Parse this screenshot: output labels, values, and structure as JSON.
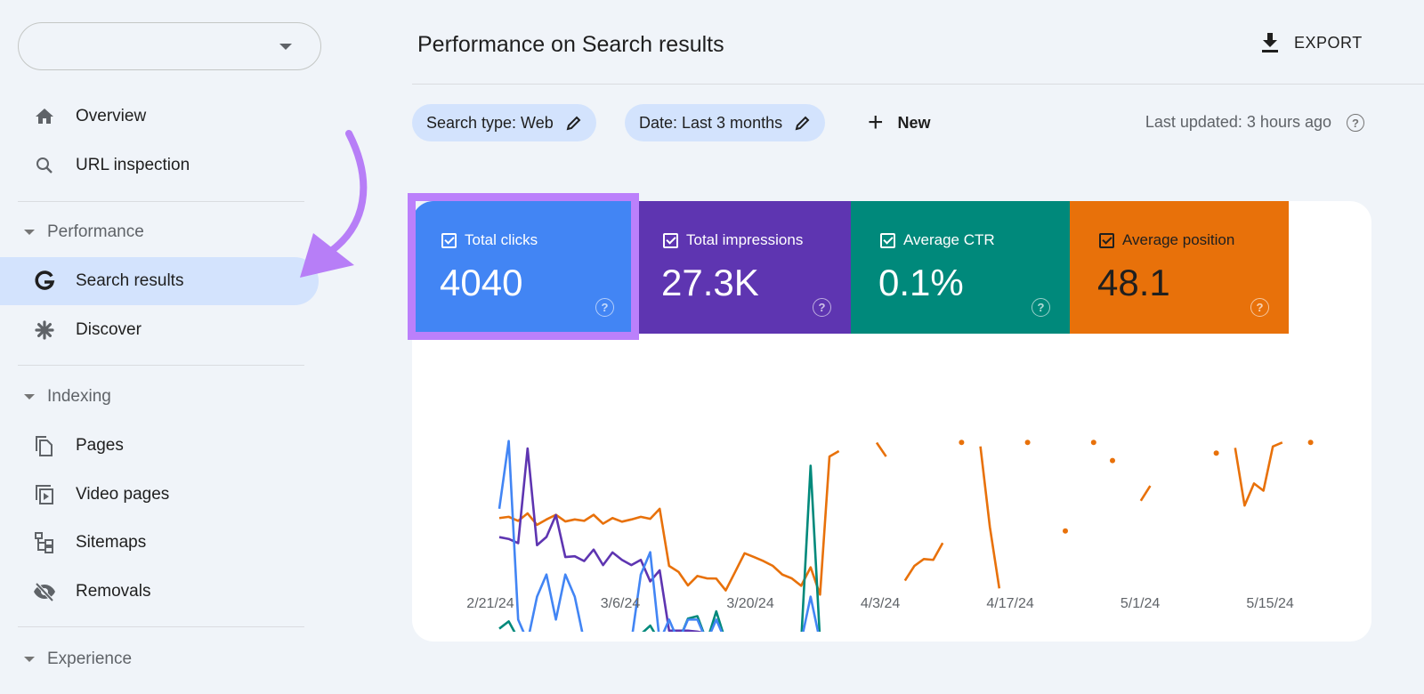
{
  "sidebar": {
    "property_selector": {
      "value": ""
    },
    "items": [
      {
        "label": "Overview",
        "icon": "home-icon"
      },
      {
        "label": "URL inspection",
        "icon": "search-icon"
      }
    ],
    "sections": [
      {
        "label": "Performance",
        "items": [
          {
            "label": "Search results",
            "icon": "google-g-icon",
            "active": true
          },
          {
            "label": "Discover",
            "icon": "asterisk-icon"
          }
        ]
      },
      {
        "label": "Indexing",
        "items": [
          {
            "label": "Pages",
            "icon": "pages-icon"
          },
          {
            "label": "Video pages",
            "icon": "video-pages-icon"
          },
          {
            "label": "Sitemaps",
            "icon": "sitemap-icon"
          },
          {
            "label": "Removals",
            "icon": "eye-off-icon"
          }
        ]
      },
      {
        "label": "Experience",
        "items": []
      }
    ]
  },
  "header": {
    "title": "Performance on Search results",
    "export_label": "EXPORT"
  },
  "filters": {
    "chips": [
      {
        "label": "Search type: Web"
      },
      {
        "label": "Date: Last 3 months"
      }
    ],
    "new_label": "New",
    "last_updated": "Last updated: 3 hours ago"
  },
  "metrics": [
    {
      "label": "Total clicks",
      "value": "4040",
      "checked": true,
      "color": "#4285f4",
      "selected": true
    },
    {
      "label": "Total impressions",
      "value": "27.3K",
      "checked": true,
      "color": "#5e35b1"
    },
    {
      "label": "Average CTR",
      "value": "0.1%",
      "checked": true,
      "color": "#00897b"
    },
    {
      "label": "Average position",
      "value": "48.1",
      "checked": true,
      "color": "#e8710a"
    }
  ],
  "annotation": {
    "arrow_color": "#b77ef7",
    "highlight_color": "#bb80fb"
  },
  "chart_data": {
    "type": "line",
    "x_start": "2/21/24",
    "x_tick_labels": [
      "2/21/24",
      "3/6/24",
      "3/20/24",
      "4/3/24",
      "4/17/24",
      "5/1/24",
      "5/15/24"
    ],
    "x_tick_day_offsets": [
      0,
      14,
      28,
      42,
      56,
      70,
      84
    ],
    "y_axis_labels_shown": false,
    "value_scale": "relative 0-100 per metric (no y-axis printed)",
    "grid": false,
    "series": [
      {
        "metric": "Average position",
        "color": "#e8710a",
        "values": [
          61.4,
          62,
          60,
          63.7,
          58,
          60.7,
          63,
          59.7,
          60.7,
          60,
          63,
          58.6,
          61.4,
          59.6,
          60.7,
          62,
          61,
          66,
          37.6,
          34.6,
          27.9,
          32.6,
          31.4,
          31.3,
          25.4,
          34.6,
          43.9,
          42,
          40,
          37.6,
          33.3,
          31.4,
          27.7,
          36.9,
          23.3,
          92,
          94.7,
          null,
          null,
          null,
          98.9,
          92,
          null,
          30.3,
          37.6,
          41,
          40.6,
          49,
          null,
          99,
          null,
          97,
          57,
          26.4,
          null,
          null,
          99,
          null,
          null,
          null,
          55,
          null,
          null,
          99,
          null,
          90,
          null,
          null,
          70,
          77.4,
          null,
          null,
          null,
          null,
          null,
          null,
          93.7,
          null,
          96.3,
          67.6,
          78.6,
          75,
          97,
          99,
          null,
          null,
          99
        ]
      },
      {
        "metric": "Total impressions",
        "color": "#5e35b1",
        "values": [
          51.9,
          51,
          48.9,
          96,
          47.9,
          52,
          62.9,
          42,
          42.4,
          40,
          45.7,
          38,
          44.3,
          40.6,
          38,
          40.6,
          29.9,
          35.4,
          5.4,
          5.4,
          5.4,
          4.9,
          4,
          3.9,
          3.3,
          3.6,
          2.9,
          3.4,
          2.9,
          3.1,
          2.9,
          2.9,
          2.9,
          1.1,
          0,
          0.3,
          0.3,
          0.3,
          0.3,
          0.3,
          0.3,
          0.3,
          0.3,
          0.3,
          0.3,
          0.3,
          0.3,
          0.3,
          0.3,
          0.3,
          0,
          0,
          0,
          0,
          0,
          0,
          0,
          0,
          0,
          0,
          0,
          0,
          0,
          0,
          0,
          0,
          0,
          0,
          0,
          0,
          0,
          0,
          0,
          0,
          0,
          0,
          0,
          0,
          0,
          0,
          0,
          0,
          0,
          0,
          0,
          0,
          0
        ]
      },
      {
        "metric": "Average CTR",
        "color": "#00897b",
        "values": [
          6.4,
          10,
          1.4,
          0.3,
          2.4,
          3.1,
          1.1,
          4.1,
          2.9,
          0,
          0,
          0,
          0,
          0,
          0,
          3.6,
          7.9,
          0,
          0,
          0,
          11.4,
          12.6,
          0,
          15,
          0,
          0,
          0,
          0,
          0,
          0,
          0,
          0,
          0,
          87.4,
          0,
          0,
          0,
          0,
          0,
          0,
          0,
          0,
          0,
          0,
          0,
          0,
          0,
          0,
          0,
          0,
          0,
          0,
          0,
          0,
          0,
          0,
          0,
          0,
          0,
          0,
          0,
          0,
          0,
          0,
          0,
          0,
          0,
          0,
          0,
          0,
          0,
          0,
          0,
          0,
          0,
          0,
          0,
          0,
          0,
          0,
          0,
          0,
          0,
          0,
          0,
          0,
          0
        ]
      },
      {
        "metric": "Total clicks",
        "color": "#4285f4",
        "values": [
          66,
          99.7,
          10.9,
          0,
          22.3,
          33.3,
          10.9,
          33.3,
          22.3,
          0,
          0,
          0,
          0,
          0,
          0,
          33.3,
          44.4,
          0,
          10.9,
          0,
          10.9,
          10.9,
          0,
          10.9,
          0,
          0,
          0,
          0,
          0,
          0,
          0,
          0,
          0,
          22.3,
          0,
          0,
          0,
          0,
          0,
          0,
          0,
          0,
          0,
          0,
          0,
          0,
          0,
          0,
          0,
          0,
          0,
          0,
          0,
          0,
          0,
          0,
          0,
          0,
          0,
          0,
          0,
          0,
          0,
          0,
          0,
          0,
          0,
          0,
          0,
          0,
          0,
          0,
          0,
          0,
          0,
          0,
          0,
          0,
          0,
          0,
          0,
          0,
          0,
          0,
          0,
          0,
          0
        ]
      }
    ]
  }
}
